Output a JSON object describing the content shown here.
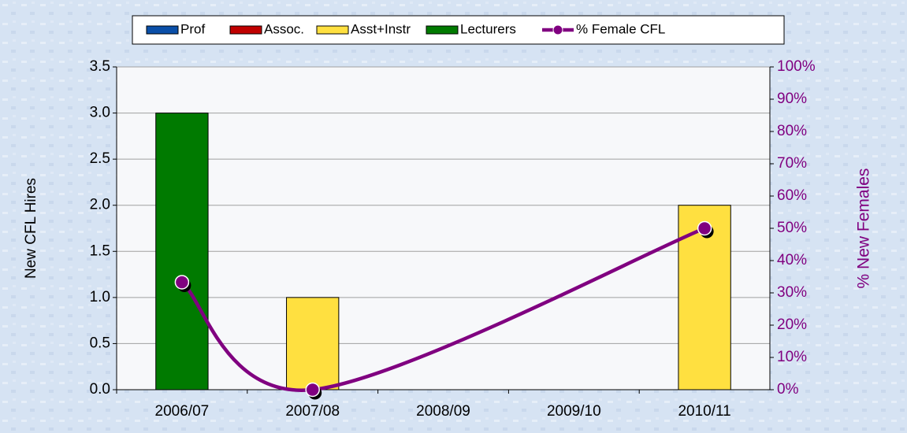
{
  "chart_data": {
    "type": "bar_line",
    "categories": [
      "2006/07",
      "2007/08",
      "2008/09",
      "2009/10",
      "2010/11"
    ],
    "series": [
      {
        "name": "Prof",
        "color": "#0a4fa8",
        "values": [
          0,
          0,
          0,
          0,
          0
        ]
      },
      {
        "name": "Assoc.",
        "color": "#c00000",
        "values": [
          0,
          0,
          0,
          0,
          0
        ]
      },
      {
        "name": "Asst+Instr",
        "color": "#ffe040",
        "values": [
          0,
          1,
          0,
          0,
          2
        ]
      },
      {
        "name": "Lecturers",
        "color": "#007a00",
        "values": [
          3,
          0,
          0,
          0,
          0
        ]
      },
      {
        "name": "% Female CFL",
        "color": "#800080",
        "axis": "y2",
        "type": "line",
        "smooth": true,
        "connect_nulls": true,
        "values": [
          33.3,
          0,
          null,
          null,
          50
        ]
      }
    ],
    "stacked": true,
    "y_label": "New CFL Hires",
    "y2_label": "% New Females",
    "ylim": [
      0,
      3.5
    ],
    "yticks": [
      {
        "value": 0,
        "label": "0.0"
      },
      0.5,
      {
        "value": 1,
        "label": "1.0"
      },
      1.5,
      {
        "value": 2,
        "label": "2.0"
      },
      2.5,
      {
        "value": 3,
        "label": "3.0"
      },
      3.5
    ],
    "y2lim": [
      0,
      100
    ],
    "y2ticks": [
      {
        "value": 0,
        "label": "0%"
      },
      {
        "value": 10,
        "label": "10%"
      },
      {
        "value": 20,
        "label": "20%"
      },
      {
        "value": 30,
        "label": "30%"
      },
      {
        "value": 40,
        "label": "40%"
      },
      {
        "value": 50,
        "label": "50%"
      },
      {
        "value": 60,
        "label": "60%"
      },
      {
        "value": 70,
        "label": "70%"
      },
      {
        "value": 80,
        "label": "80%"
      },
      {
        "value": 90,
        "label": "90%"
      },
      {
        "value": 100,
        "label": "100%"
      }
    ],
    "grid": true,
    "legend": "top"
  }
}
